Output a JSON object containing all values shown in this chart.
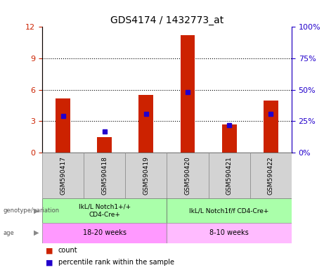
{
  "title": "GDS4174 / 1432773_at",
  "samples": [
    "GSM590417",
    "GSM590418",
    "GSM590419",
    "GSM590420",
    "GSM590421",
    "GSM590422"
  ],
  "count_values": [
    5.2,
    1.5,
    5.5,
    11.2,
    2.7,
    5.0
  ],
  "percentile_values": [
    29,
    17,
    31,
    48,
    22,
    31
  ],
  "ylim_left": [
    0,
    12
  ],
  "ylim_right": [
    0,
    100
  ],
  "yticks_left": [
    0,
    3,
    6,
    9,
    12
  ],
  "yticks_right": [
    0,
    25,
    50,
    75,
    100
  ],
  "bar_color": "#cc2200",
  "percentile_color": "#2200cc",
  "group1_label": "IkL/L Notch1+/+\nCD4-Cre+",
  "group2_label": "IkL/L Notch1f/f CD4-Cre+",
  "age1_label": "18-20 weeks",
  "age2_label": "8-10 weeks",
  "group1_color": "#aaffaa",
  "group2_color": "#aaffaa",
  "age1_color": "#ff99ff",
  "age2_color": "#ffbbff",
  "bar_width": 0.35
}
